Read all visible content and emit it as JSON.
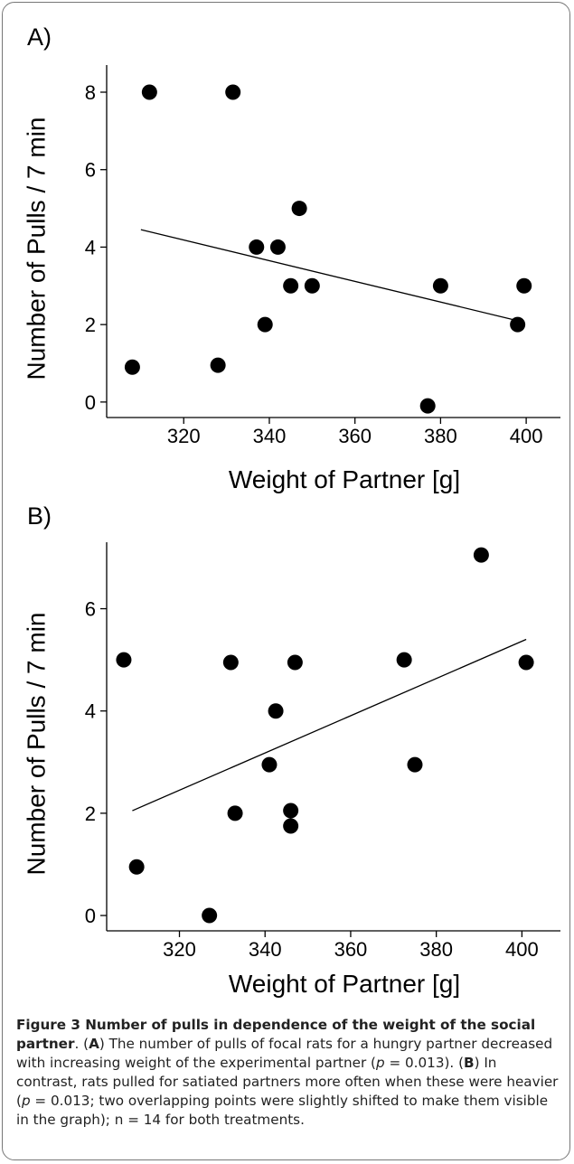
{
  "chart_data": [
    {
      "type": "scatter",
      "panel_label": "A)",
      "xlabel": "Weight of Partner [g]",
      "ylabel": "Number of Pulls / 7 min",
      "xlim": [
        302,
        408
      ],
      "ylim": [
        -0.4,
        8.7
      ],
      "x_ticks": [
        320,
        340,
        360,
        380,
        400
      ],
      "y_ticks": [
        0,
        2,
        4,
        6,
        8
      ],
      "grid": false,
      "points": [
        {
          "x": 308,
          "y": 0.9
        },
        {
          "x": 312,
          "y": 8.0
        },
        {
          "x": 328,
          "y": 0.95
        },
        {
          "x": 331.5,
          "y": 8.0
        },
        {
          "x": 337,
          "y": 4.0
        },
        {
          "x": 339,
          "y": 2.0
        },
        {
          "x": 342,
          "y": 4.0
        },
        {
          "x": 345,
          "y": 3.0
        },
        {
          "x": 347,
          "y": 5.0
        },
        {
          "x": 350,
          "y": 3.0
        },
        {
          "x": 377,
          "y": -0.1
        },
        {
          "x": 380,
          "y": 3.0
        },
        {
          "x": 398,
          "y": 2.0
        },
        {
          "x": 399.5,
          "y": 3.0
        }
      ],
      "trend_line": {
        "x": [
          310,
          398
        ],
        "y": [
          4.45,
          2.1
        ]
      }
    },
    {
      "type": "scatter",
      "panel_label": "B)",
      "xlabel": "Weight of Partner [g]",
      "ylabel": "Number of Pulls / 7 min",
      "xlim": [
        303,
        409
      ],
      "ylim": [
        -0.3,
        7.3
      ],
      "x_ticks": [
        320,
        340,
        360,
        380,
        400
      ],
      "y_ticks": [
        0,
        2,
        4,
        6
      ],
      "grid": false,
      "points": [
        {
          "x": 307,
          "y": 5.0
        },
        {
          "x": 310,
          "y": 0.95
        },
        {
          "x": 327,
          "y": 0.0
        },
        {
          "x": 332,
          "y": 4.95
        },
        {
          "x": 333,
          "y": 2.0
        },
        {
          "x": 341,
          "y": 2.95
        },
        {
          "x": 342.5,
          "y": 4.0
        },
        {
          "x": 346,
          "y": 2.05
        },
        {
          "x": 346,
          "y": 1.75
        },
        {
          "x": 347,
          "y": 4.95
        },
        {
          "x": 372.5,
          "y": 5.0
        },
        {
          "x": 375,
          "y": 2.95
        },
        {
          "x": 390.5,
          "y": 7.05
        },
        {
          "x": 401,
          "y": 4.95
        }
      ],
      "trend_line": {
        "x": [
          309,
          401
        ],
        "y": [
          2.05,
          5.4
        ]
      }
    }
  ],
  "caption": {
    "title": "Figure 3 Number of pulls in dependence of the weight of the social partner",
    "seg1": ". (",
    "letter_a": "A",
    "seg2": ") The number of pulls of focal rats for a hungry partner decreased with increasing weight of the experimental partner (",
    "p1": "p",
    "seg3": " = 0.013). (",
    "letter_b": "B",
    "seg4": ") In contrast, rats pulled for satiated partners more often when these were heavier (",
    "p2": "p",
    "seg5": " = 0.013; two overlapping points were slightly shifted to make them visible in the graph); n = 14 for both treatments."
  }
}
